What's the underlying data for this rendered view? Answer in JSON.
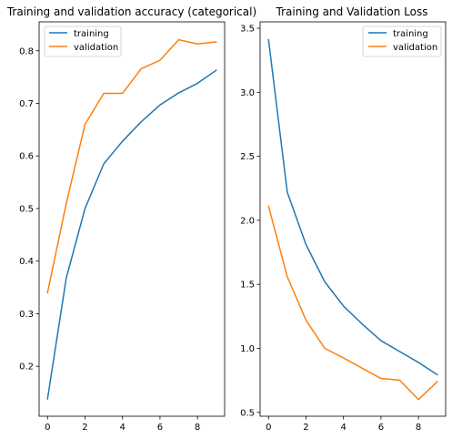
{
  "chart_data": [
    {
      "type": "line",
      "title": "Training and validation accuracy (categorical)",
      "xlabel": "",
      "ylabel": "",
      "xlim": [
        -0.45,
        9.45
      ],
      "ylim": [
        0.105,
        0.855
      ],
      "xticks": [
        0,
        2,
        4,
        6,
        8
      ],
      "yticks": [
        0.2,
        0.3,
        0.4,
        0.5,
        0.6,
        0.7,
        0.8
      ],
      "grid": false,
      "legend_position": "upper-left",
      "x": [
        0,
        1,
        2,
        3,
        4,
        5,
        6,
        7,
        8,
        9
      ],
      "series": [
        {
          "name": "training",
          "color": "#1f77b4",
          "values": [
            0.138,
            0.368,
            0.5,
            0.585,
            0.628,
            0.665,
            0.697,
            0.72,
            0.738,
            0.763
          ]
        },
        {
          "name": "validation",
          "color": "#ff7f0e",
          "values": [
            0.34,
            0.51,
            0.66,
            0.719,
            0.719,
            0.766,
            0.782,
            0.821,
            0.813,
            0.817
          ]
        }
      ]
    },
    {
      "type": "line",
      "title": "Training and Validation Loss",
      "xlabel": "",
      "ylabel": "",
      "xlim": [
        -0.45,
        9.45
      ],
      "ylim": [
        0.47,
        3.55
      ],
      "xticks": [
        0,
        2,
        4,
        6,
        8
      ],
      "yticks": [
        0.5,
        1.0,
        1.5,
        2.0,
        2.5,
        3.0,
        3.5
      ],
      "grid": false,
      "legend_position": "upper-right",
      "x": [
        0,
        1,
        2,
        3,
        4,
        5,
        6,
        7,
        8,
        9
      ],
      "series": [
        {
          "name": "training",
          "color": "#1f77b4",
          "values": [
            3.41,
            2.22,
            1.81,
            1.52,
            1.33,
            1.19,
            1.06,
            0.975,
            0.89,
            0.795
          ]
        },
        {
          "name": "validation",
          "color": "#ff7f0e",
          "values": [
            2.11,
            1.56,
            1.22,
            1.0,
            0.925,
            0.845,
            0.765,
            0.752,
            0.6,
            0.74
          ]
        }
      ]
    }
  ]
}
